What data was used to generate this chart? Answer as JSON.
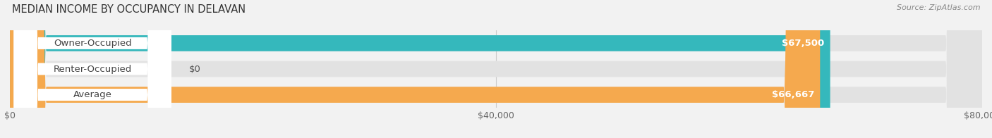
{
  "title": "MEDIAN INCOME BY OCCUPANCY IN DELAVAN",
  "source": "Source: ZipAtlas.com",
  "categories": [
    "Owner-Occupied",
    "Renter-Occupied",
    "Average"
  ],
  "values": [
    67500,
    0,
    66667
  ],
  "bar_colors": [
    "#35b8bc",
    "#c4a8d0",
    "#f5a94e"
  ],
  "value_labels": [
    "$67,500",
    "$0",
    "$66,667"
  ],
  "xlim": [
    0,
    80000
  ],
  "xticks": [
    0,
    40000,
    80000
  ],
  "xticklabels": [
    "$0",
    "$40,000",
    "$80,000"
  ],
  "bar_height": 0.62,
  "background_color": "#f2f2f2",
  "track_color": "#e2e2e2",
  "title_fontsize": 10.5,
  "tick_fontsize": 9,
  "label_fontsize": 9.5,
  "source_fontsize": 8
}
